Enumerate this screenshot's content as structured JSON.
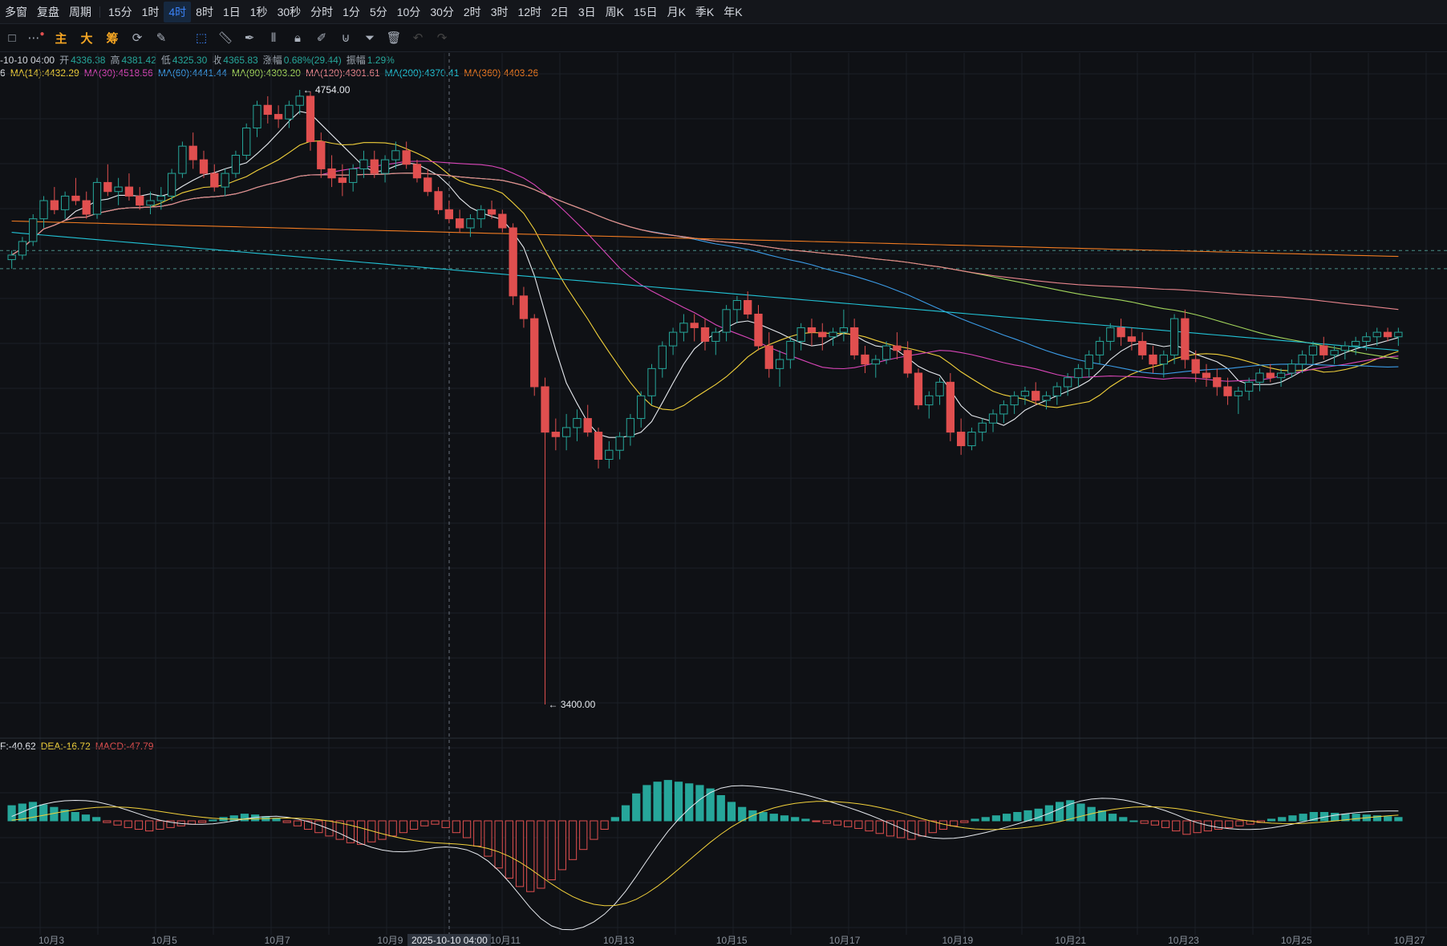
{
  "toolbar": {
    "items": [
      "多窗",
      "复盘",
      "周期",
      "15分",
      "1时",
      "4时",
      "8时",
      "1日",
      "1秒",
      "30秒",
      "分时",
      "1分",
      "5分",
      "10分",
      "30分",
      "2时",
      "3时",
      "12时",
      "2日",
      "3日",
      "周K",
      "15日",
      "月K",
      "季K",
      "年K"
    ],
    "active": "4时"
  },
  "toolbar2": {
    "main_label": "主",
    "big_label": "大",
    "chip_label": "筹"
  },
  "ohlc": {
    "date": "-10-10 04:00",
    "open_label": "开",
    "open": "4336.38",
    "high_label": "高",
    "high": "4381.42",
    "low_label": "低",
    "low": "4325.30",
    "close_label": "收",
    "close": "4365.83",
    "change_label": "涨幅",
    "change": "0.68%(29.44)",
    "amp_label": "振幅",
    "amp": "1.29%"
  },
  "ma_legend": [
    {
      "text": "6",
      "color": "#e6e9ee"
    },
    {
      "text": "MA(14):4432.29",
      "color": "#f2d13b"
    },
    {
      "text": "MA(30):4518.56",
      "color": "#d946b8"
    },
    {
      "text": "MA(60):4441.44",
      "color": "#3b9be6"
    },
    {
      "text": "MA(90):4303.20",
      "color": "#a3d65c"
    },
    {
      "text": "MA(120):4301.61",
      "color": "#e8858d"
    },
    {
      "text": "MA(200):4370.41",
      "color": "#22c3d6"
    },
    {
      "text": "MA(360):4403.26",
      "color": "#f07b22"
    }
  ],
  "macd_legend": [
    {
      "text": "F:-40.62",
      "color": "#e6e9ee"
    },
    {
      "text": "DEA:-16.72",
      "color": "#f2d13b"
    },
    {
      "text": "MACD:-47.79",
      "color": "#e04f4f"
    }
  ],
  "chart_data": {
    "type": "candlestick",
    "high_marker": "4754.00",
    "low_marker": "3400.00",
    "crosshair_date": "2025-10-10 04:00",
    "x_labels": [
      "10月3",
      "10月5",
      "10月7",
      "10月9",
      "10月11",
      "10月13",
      "10月15",
      "10月17",
      "10月19",
      "10月21",
      "10月23",
      "10月25",
      "10月27"
    ],
    "price_lines": [
      4400,
      4360
    ],
    "colors": {
      "up": "#26a69a",
      "down": "#e04f4f"
    },
    "candles": [
      [
        4380,
        4400,
        4360,
        4390
      ],
      [
        4390,
        4430,
        4380,
        4420
      ],
      [
        4420,
        4480,
        4410,
        4470
      ],
      [
        4470,
        4520,
        4450,
        4510
      ],
      [
        4510,
        4540,
        4480,
        4490
      ],
      [
        4490,
        4530,
        4470,
        4520
      ],
      [
        4520,
        4560,
        4500,
        4510
      ],
      [
        4510,
        4530,
        4470,
        4480
      ],
      [
        4480,
        4560,
        4470,
        4550
      ],
      [
        4550,
        4590,
        4520,
        4530
      ],
      [
        4530,
        4560,
        4500,
        4540
      ],
      [
        4540,
        4570,
        4510,
        4520
      ],
      [
        4520,
        4540,
        4490,
        4500
      ],
      [
        4500,
        4530,
        4480,
        4510
      ],
      [
        4510,
        4540,
        4490,
        4520
      ],
      [
        4520,
        4580,
        4510,
        4570
      ],
      [
        4570,
        4640,
        4560,
        4630
      ],
      [
        4630,
        4660,
        4580,
        4600
      ],
      [
        4600,
        4620,
        4560,
        4570
      ],
      [
        4570,
        4590,
        4530,
        4540
      ],
      [
        4540,
        4580,
        4520,
        4570
      ],
      [
        4570,
        4620,
        4560,
        4610
      ],
      [
        4610,
        4680,
        4600,
        4670
      ],
      [
        4670,
        4730,
        4650,
        4720
      ],
      [
        4720,
        4740,
        4680,
        4700
      ],
      [
        4700,
        4720,
        4670,
        4690
      ],
      [
        4690,
        4730,
        4670,
        4720
      ],
      [
        4720,
        4754,
        4700,
        4740
      ],
      [
        4740,
        4750,
        4620,
        4640
      ],
      [
        4640,
        4660,
        4560,
        4580
      ],
      [
        4580,
        4610,
        4540,
        4560
      ],
      [
        4560,
        4590,
        4520,
        4550
      ],
      [
        4550,
        4590,
        4530,
        4580
      ],
      [
        4580,
        4620,
        4560,
        4600
      ],
      [
        4600,
        4620,
        4560,
        4570
      ],
      [
        4570,
        4610,
        4550,
        4600
      ],
      [
        4600,
        4640,
        4580,
        4620
      ],
      [
        4620,
        4640,
        4580,
        4590
      ],
      [
        4590,
        4600,
        4550,
        4560
      ],
      [
        4560,
        4580,
        4520,
        4530
      ],
      [
        4530,
        4540,
        4480,
        4490
      ],
      [
        4490,
        4510,
        4460,
        4470
      ],
      [
        4470,
        4490,
        4440,
        4450
      ],
      [
        4450,
        4480,
        4430,
        4470
      ],
      [
        4470,
        4500,
        4450,
        4490
      ],
      [
        4490,
        4510,
        4470,
        4480
      ],
      [
        4480,
        4490,
        4440,
        4450
      ],
      [
        4450,
        4460,
        4280,
        4300
      ],
      [
        4300,
        4320,
        4230,
        4250
      ],
      [
        4250,
        4260,
        4080,
        4100
      ],
      [
        4100,
        4120,
        3400,
        4000
      ],
      [
        4000,
        4030,
        3960,
        3990
      ],
      [
        3990,
        4040,
        3960,
        4010
      ],
      [
        4010,
        4050,
        3980,
        4030
      ],
      [
        4030,
        4060,
        3990,
        4000
      ],
      [
        4000,
        4010,
        3920,
        3940
      ],
      [
        3940,
        3980,
        3920,
        3960
      ],
      [
        3960,
        4000,
        3940,
        3990
      ],
      [
        3990,
        4040,
        3970,
        4030
      ],
      [
        4030,
        4090,
        4010,
        4080
      ],
      [
        4080,
        4150,
        4060,
        4140
      ],
      [
        4140,
        4200,
        4120,
        4190
      ],
      [
        4190,
        4230,
        4170,
        4220
      ],
      [
        4220,
        4260,
        4200,
        4240
      ],
      [
        4240,
        4260,
        4200,
        4230
      ],
      [
        4230,
        4250,
        4180,
        4200
      ],
      [
        4200,
        4230,
        4170,
        4220
      ],
      [
        4220,
        4280,
        4200,
        4270
      ],
      [
        4270,
        4300,
        4240,
        4290
      ],
      [
        4290,
        4310,
        4250,
        4260
      ],
      [
        4260,
        4280,
        4180,
        4190
      ],
      [
        4190,
        4220,
        4120,
        4140
      ],
      [
        4140,
        4180,
        4100,
        4160
      ],
      [
        4160,
        4210,
        4140,
        4200
      ],
      [
        4200,
        4240,
        4180,
        4230
      ],
      [
        4230,
        4250,
        4190,
        4220
      ],
      [
        4220,
        4240,
        4180,
        4210
      ],
      [
        4210,
        4230,
        4190,
        4220
      ],
      [
        4220,
        4270,
        4200,
        4230
      ],
      [
        4230,
        4250,
        4160,
        4170
      ],
      [
        4170,
        4190,
        4130,
        4150
      ],
      [
        4150,
        4170,
        4120,
        4160
      ],
      [
        4160,
        4200,
        4150,
        4190
      ],
      [
        4190,
        4220,
        4160,
        4180
      ],
      [
        4180,
        4200,
        4120,
        4130
      ],
      [
        4130,
        4140,
        4050,
        4060
      ],
      [
        4060,
        4090,
        4030,
        4080
      ],
      [
        4080,
        4120,
        4060,
        4110
      ],
      [
        4110,
        4130,
        3980,
        4000
      ],
      [
        4000,
        4030,
        3950,
        3970
      ],
      [
        3970,
        4010,
        3960,
        4000
      ],
      [
        4000,
        4030,
        3980,
        4020
      ],
      [
        4020,
        4050,
        4000,
        4040
      ],
      [
        4040,
        4070,
        4020,
        4060
      ],
      [
        4060,
        4090,
        4040,
        4080
      ],
      [
        4080,
        4100,
        4060,
        4090
      ],
      [
        4090,
        4110,
        4060,
        4070
      ],
      [
        4070,
        4090,
        4050,
        4080
      ],
      [
        4080,
        4110,
        4060,
        4100
      ],
      [
        4100,
        4130,
        4080,
        4120
      ],
      [
        4120,
        4150,
        4100,
        4140
      ],
      [
        4140,
        4180,
        4120,
        4170
      ],
      [
        4170,
        4210,
        4150,
        4200
      ],
      [
        4200,
        4240,
        4180,
        4230
      ],
      [
        4230,
        4250,
        4190,
        4210
      ],
      [
        4210,
        4230,
        4180,
        4200
      ],
      [
        4200,
        4220,
        4160,
        4170
      ],
      [
        4170,
        4190,
        4130,
        4150
      ],
      [
        4150,
        4180,
        4120,
        4170
      ],
      [
        4170,
        4260,
        4150,
        4250
      ],
      [
        4250,
        4270,
        4140,
        4160
      ],
      [
        4160,
        4180,
        4110,
        4130
      ],
      [
        4130,
        4150,
        4100,
        4120
      ],
      [
        4120,
        4140,
        4080,
        4100
      ],
      [
        4100,
        4120,
        4060,
        4080
      ],
      [
        4080,
        4100,
        4040,
        4090
      ],
      [
        4090,
        4120,
        4070,
        4110
      ],
      [
        4110,
        4140,
        4090,
        4130
      ],
      [
        4130,
        4150,
        4110,
        4120
      ],
      [
        4120,
        4140,
        4100,
        4130
      ],
      [
        4130,
        4160,
        4120,
        4150
      ],
      [
        4150,
        4180,
        4130,
        4170
      ],
      [
        4170,
        4200,
        4150,
        4190
      ],
      [
        4190,
        4210,
        4160,
        4170
      ],
      [
        4170,
        4190,
        4150,
        4180
      ],
      [
        4180,
        4200,
        4160,
        4190
      ],
      [
        4190,
        4210,
        4170,
        4200
      ],
      [
        4200,
        4220,
        4180,
        4210
      ],
      [
        4210,
        4230,
        4190,
        4220
      ],
      [
        4220,
        4230,
        4200,
        4210
      ],
      [
        4210,
        4230,
        4190,
        4220
      ]
    ],
    "macd_hist": [
      18,
      20,
      22,
      19,
      16,
      13,
      10,
      7,
      4,
      -2,
      -5,
      -8,
      -10,
      -12,
      -10,
      -8,
      -6,
      -4,
      -2,
      1,
      4,
      6,
      8,
      7,
      5,
      3,
      -2,
      -6,
      -10,
      -14,
      -18,
      -22,
      -26,
      -28,
      -25,
      -22,
      -18,
      -14,
      -10,
      -6,
      -4,
      -8,
      -14,
      -20,
      -30,
      -42,
      -56,
      -68,
      -78,
      -84,
      -80,
      -70,
      -58,
      -46,
      -34,
      -22,
      -10,
      4,
      18,
      32,
      42,
      46,
      48,
      46,
      44,
      42,
      38,
      30,
      22,
      16,
      12,
      10,
      8,
      6,
      4,
      2,
      -1,
      -3,
      -5,
      -7,
      -9,
      -12,
      -15,
      -18,
      -20,
      -22,
      -18,
      -14,
      -10,
      -6,
      -2,
      2,
      4,
      6,
      8,
      10,
      12,
      14,
      18,
      22,
      24,
      20,
      16,
      12,
      8,
      4,
      0,
      -3,
      -5,
      -8,
      -12,
      -16,
      -14,
      -12,
      -10,
      -8,
      -6,
      -4,
      -2,
      2,
      4,
      6,
      8,
      10,
      10,
      9,
      8,
      8,
      7,
      6,
      5,
      4
    ]
  }
}
